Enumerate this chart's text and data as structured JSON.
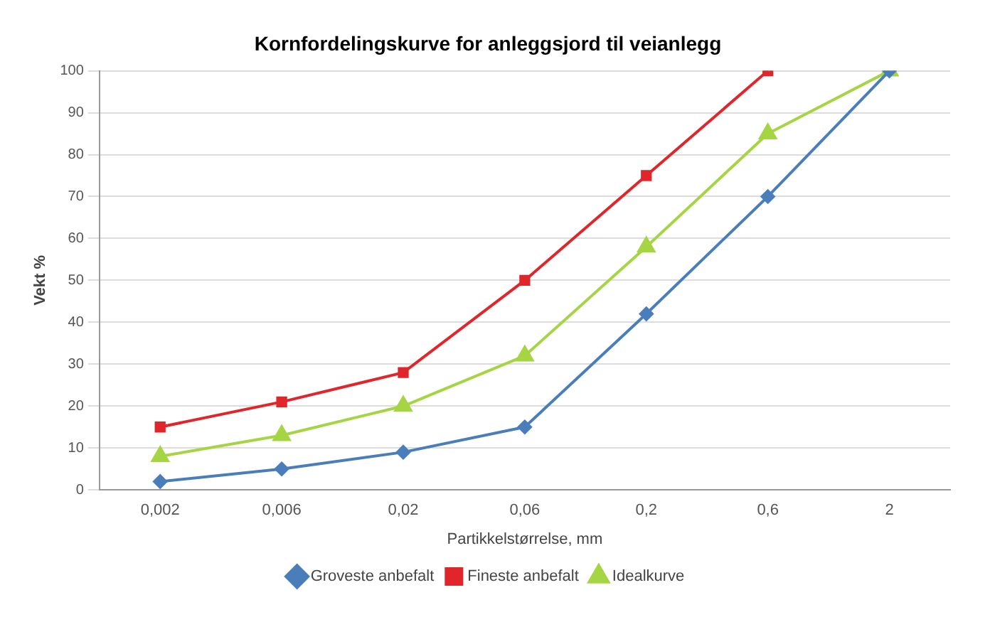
{
  "chart_data": {
    "type": "line",
    "title": "Kornfordelingskurve for anleggsjord til veianlegg",
    "xlabel": "Partikkelstørrelse, mm",
    "ylabel": "Vekt %",
    "categories": [
      "0,002",
      "0,006",
      "0,02",
      "0,06",
      "0,2",
      "0,6",
      "2"
    ],
    "series": [
      {
        "name": "Groveste anbefalt",
        "color": "#4a7ebb",
        "marker": "diamond",
        "values": [
          2,
          5,
          9,
          15,
          42,
          70,
          100
        ]
      },
      {
        "name": "Fineste anbefalt",
        "color": "#e0262a",
        "marker": "square",
        "values": [
          15,
          21,
          28,
          50,
          75,
          100,
          null
        ]
      },
      {
        "name": "Idealkurve",
        "color": "#a6d543",
        "marker": "triangle",
        "values": [
          8,
          13,
          20,
          32,
          58,
          85,
          100
        ]
      }
    ],
    "ylim": [
      0,
      100
    ],
    "yticks": [
      0,
      10,
      20,
      30,
      40,
      50,
      60,
      70,
      80,
      90,
      100
    ],
    "grid": "y",
    "legend": "bottom"
  }
}
